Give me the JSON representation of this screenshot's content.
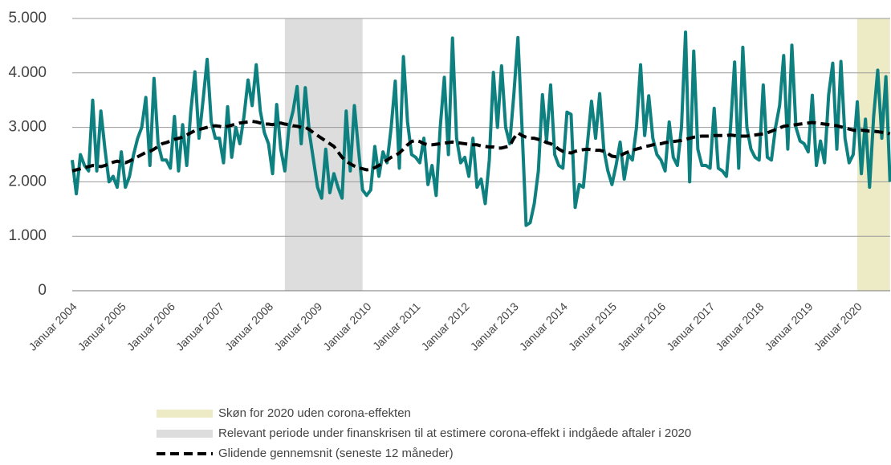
{
  "chart_data": {
    "type": "line",
    "categories": [
      "Januar 2004",
      null,
      null,
      null,
      null,
      null,
      null,
      null,
      null,
      null,
      null,
      null,
      "Januar 2005",
      null,
      null,
      null,
      null,
      null,
      null,
      null,
      null,
      null,
      null,
      null,
      "Januar 2006",
      null,
      null,
      null,
      null,
      null,
      null,
      null,
      null,
      null,
      null,
      null,
      "Januar 2007",
      null,
      null,
      null,
      null,
      null,
      null,
      null,
      null,
      null,
      null,
      null,
      "Januar 2008",
      null,
      null,
      null,
      null,
      null,
      null,
      null,
      null,
      null,
      null,
      null,
      "Januar 2009",
      null,
      null,
      null,
      null,
      null,
      null,
      null,
      null,
      null,
      null,
      null,
      "Januar 2010",
      null,
      null,
      null,
      null,
      null,
      null,
      null,
      null,
      null,
      null,
      null,
      "Januar 2011",
      null,
      null,
      null,
      null,
      null,
      null,
      null,
      null,
      null,
      null,
      null,
      "Januar 2012",
      null,
      null,
      null,
      null,
      null,
      null,
      null,
      null,
      null,
      null,
      null,
      "Januar 2013",
      null,
      null,
      null,
      null,
      null,
      null,
      null,
      null,
      null,
      null,
      null,
      "Januar 2014",
      null,
      null,
      null,
      null,
      null,
      null,
      null,
      null,
      null,
      null,
      null,
      "Januar 2015",
      null,
      null,
      null,
      null,
      null,
      null,
      null,
      null,
      null,
      null,
      null,
      "Januar 2016",
      null,
      null,
      null,
      null,
      null,
      null,
      null,
      null,
      null,
      null,
      null,
      "Januar 2017",
      null,
      null,
      null,
      null,
      null,
      null,
      null,
      null,
      null,
      null,
      null,
      "Januar 2018",
      null,
      null,
      null,
      null,
      null,
      null,
      null,
      null,
      null,
      null,
      null,
      "Januar 2019",
      null,
      null,
      null,
      null,
      null,
      null,
      null,
      null,
      null,
      null,
      null,
      "Januar 2020",
      null,
      null,
      null,
      null,
      null,
      null,
      null,
      null
    ],
    "series": [
      {
        "color": "#0e8080",
        "values": [
          2400,
          1780,
          2500,
          2300,
          2200,
          3500,
          2200,
          3300,
          2600,
          2000,
          2100,
          1900,
          2550,
          1900,
          2100,
          2500,
          2800,
          3000,
          3550,
          2300,
          3900,
          2700,
          2400,
          2400,
          2250,
          3200,
          2200,
          3050,
          2300,
          3300,
          4020,
          2800,
          3500,
          4250,
          3100,
          2800,
          2800,
          2350,
          3380,
          2450,
          3000,
          2700,
          3200,
          3870,
          3400,
          4150,
          3300,
          2900,
          2700,
          2150,
          3420,
          2600,
          2200,
          3000,
          3300,
          3750,
          2700,
          3730,
          2900,
          2400,
          1900,
          1700,
          2600,
          1800,
          2150,
          1900,
          1700,
          3300,
          2200,
          3400,
          2600,
          1850,
          1750,
          1850,
          2650,
          2100,
          2550,
          2350,
          3000,
          3850,
          2250,
          4300,
          3100,
          2500,
          2450,
          2350,
          2800,
          1950,
          2300,
          1750,
          3000,
          3920,
          2500,
          4640,
          2800,
          2350,
          2450,
          2100,
          2800,
          1900,
          2050,
          1600,
          2400,
          4010,
          3000,
          4130,
          3000,
          2700,
          3600,
          4650,
          3000,
          1200,
          1250,
          1600,
          2200,
          3600,
          2750,
          3780,
          2500,
          2300,
          2250,
          3280,
          3240,
          1530,
          1950,
          1900,
          2700,
          3480,
          2800,
          3620,
          2600,
          2200,
          1950,
          2300,
          2730,
          2050,
          2500,
          2400,
          3000,
          4150,
          2850,
          3580,
          2800,
          2500,
          2400,
          2200,
          3100,
          2450,
          2300,
          3000,
          4750,
          2000,
          4400,
          2600,
          2300,
          2300,
          2250,
          3350,
          2250,
          2200,
          2100,
          3000,
          4200,
          2250,
          4470,
          3000,
          2600,
          2450,
          2400,
          3780,
          2450,
          2400,
          3000,
          3400,
          4320,
          2600,
          4510,
          3000,
          2750,
          2700,
          2550,
          3590,
          2300,
          2750,
          2350,
          3600,
          4180,
          2600,
          4210,
          2800,
          2350,
          2500,
          3470,
          2150,
          3150,
          1900,
          3200,
          4050,
          2800,
          3930,
          2000
        ]
      },
      {
        "name": "Glidende gennemsnit (seneste 12 måneder)",
        "color": "#000000",
        "dashed": true,
        "values": [
          2200,
          2220,
          2240,
          2260,
          2280,
          2300,
          2290,
          2280,
          2300,
          2330,
          2360,
          2380,
          2360,
          2350,
          2380,
          2420,
          2460,
          2500,
          2540,
          2560,
          2600,
          2650,
          2700,
          2720,
          2750,
          2780,
          2800,
          2820,
          2860,
          2900,
          2940,
          2960,
          2980,
          3000,
          3020,
          3030,
          3020,
          3000,
          3020,
          3040,
          3060,
          3080,
          3090,
          3100,
          3110,
          3100,
          3080,
          3060,
          3060,
          3050,
          3070,
          3080,
          3060,
          3050,
          3030,
          3020,
          3000,
          3000,
          2960,
          2900,
          2850,
          2800,
          2750,
          2700,
          2650,
          2550,
          2450,
          2380,
          2330,
          2290,
          2260,
          2240,
          2220,
          2230,
          2260,
          2300,
          2350,
          2400,
          2450,
          2480,
          2530,
          2600,
          2680,
          2740,
          2760,
          2740,
          2700,
          2680,
          2680,
          2690,
          2700,
          2710,
          2720,
          2730,
          2720,
          2710,
          2700,
          2690,
          2680,
          2680,
          2660,
          2650,
          2640,
          2640,
          2620,
          2620,
          2640,
          2660,
          2800,
          2900,
          2850,
          2820,
          2800,
          2800,
          2780,
          2760,
          2720,
          2700,
          2660,
          2600,
          2560,
          2540,
          2530,
          2560,
          2580,
          2590,
          2600,
          2590,
          2580,
          2580,
          2560,
          2520,
          2470,
          2460,
          2480,
          2520,
          2550,
          2580,
          2600,
          2620,
          2650,
          2660,
          2680,
          2700,
          2700,
          2720,
          2730,
          2740,
          2750,
          2760,
          2780,
          2800,
          2820,
          2830,
          2840,
          2840,
          2840,
          2850,
          2850,
          2850,
          2850,
          2860,
          2850,
          2840,
          2840,
          2840,
          2850,
          2860,
          2870,
          2880,
          2900,
          2930,
          2960,
          2990,
          3020,
          3030,
          3040,
          3050,
          3060,
          3070,
          3080,
          3090,
          3080,
          3070,
          3060,
          3050,
          3040,
          3030,
          3010,
          2990,
          2970,
          2950,
          2940,
          2950,
          2940,
          2930,
          2930,
          2920,
          2910,
          2900,
          2880
        ]
      }
    ],
    "bands": [
      {
        "name": "Skøn for 2020 uden corona-effekten",
        "color": "#ecebc6",
        "start": 192,
        "end": 200
      },
      {
        "name": "Relevant periode under finanskrisen til at estimere corona-effekt i indgåede aftaler i 2020",
        "color": "#dddddd",
        "start": 52,
        "end": 71
      }
    ],
    "ylim": [
      0,
      5000
    ],
    "yticks": [
      {
        "value": 0,
        "label": "0"
      },
      {
        "value": 1000,
        "label": "1.000"
      },
      {
        "value": 2000,
        "label": "2.000"
      },
      {
        "value": 3000,
        "label": "3.000"
      },
      {
        "value": 4000,
        "label": "4.000"
      },
      {
        "value": 5000,
        "label": "5.000"
      }
    ],
    "grid": true
  }
}
